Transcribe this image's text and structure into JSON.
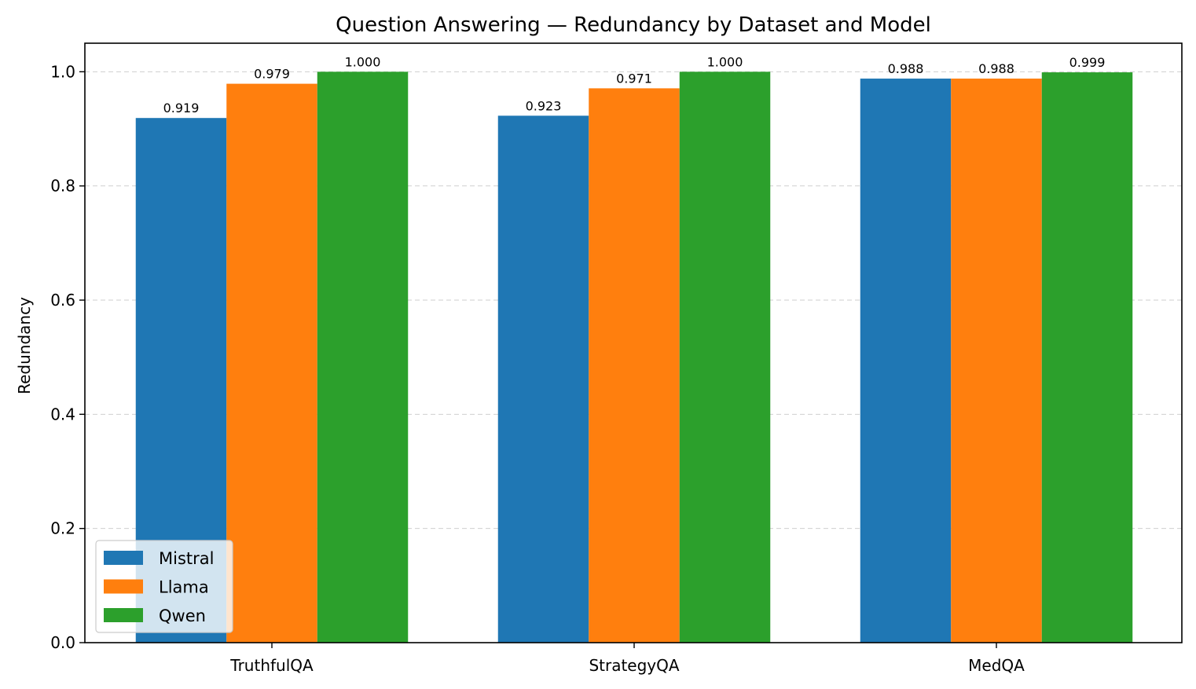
{
  "chart_data": {
    "type": "bar",
    "title": "Question Answering — Redundancy by Dataset and Model",
    "xlabel": "",
    "ylabel": "Redundancy",
    "categories": [
      "TruthfulQA",
      "StrategyQA",
      "MedQA"
    ],
    "series": [
      {
        "name": "Mistral",
        "color": "#1f77b4",
        "values": [
          0.919,
          0.923,
          0.988
        ],
        "labels": [
          "0.919",
          "0.923",
          "0.988"
        ]
      },
      {
        "name": "Llama",
        "color": "#ff7f0e",
        "values": [
          0.979,
          0.971,
          0.988
        ],
        "labels": [
          "0.979",
          "0.971",
          "0.988"
        ]
      },
      {
        "name": "Qwen",
        "color": "#2ca02c",
        "values": [
          1.0,
          1.0,
          0.999
        ],
        "labels": [
          "1.000",
          "1.000",
          "0.999"
        ]
      }
    ],
    "ylim": [
      0,
      1.05
    ],
    "yticks": [
      "0.0",
      "0.2",
      "0.4",
      "0.6",
      "0.8",
      "1.0"
    ],
    "ytick_values": [
      0,
      0.2,
      0.4,
      0.6,
      0.8,
      1.0
    ],
    "grid": "y-dashed",
    "legend": "lower-left"
  }
}
